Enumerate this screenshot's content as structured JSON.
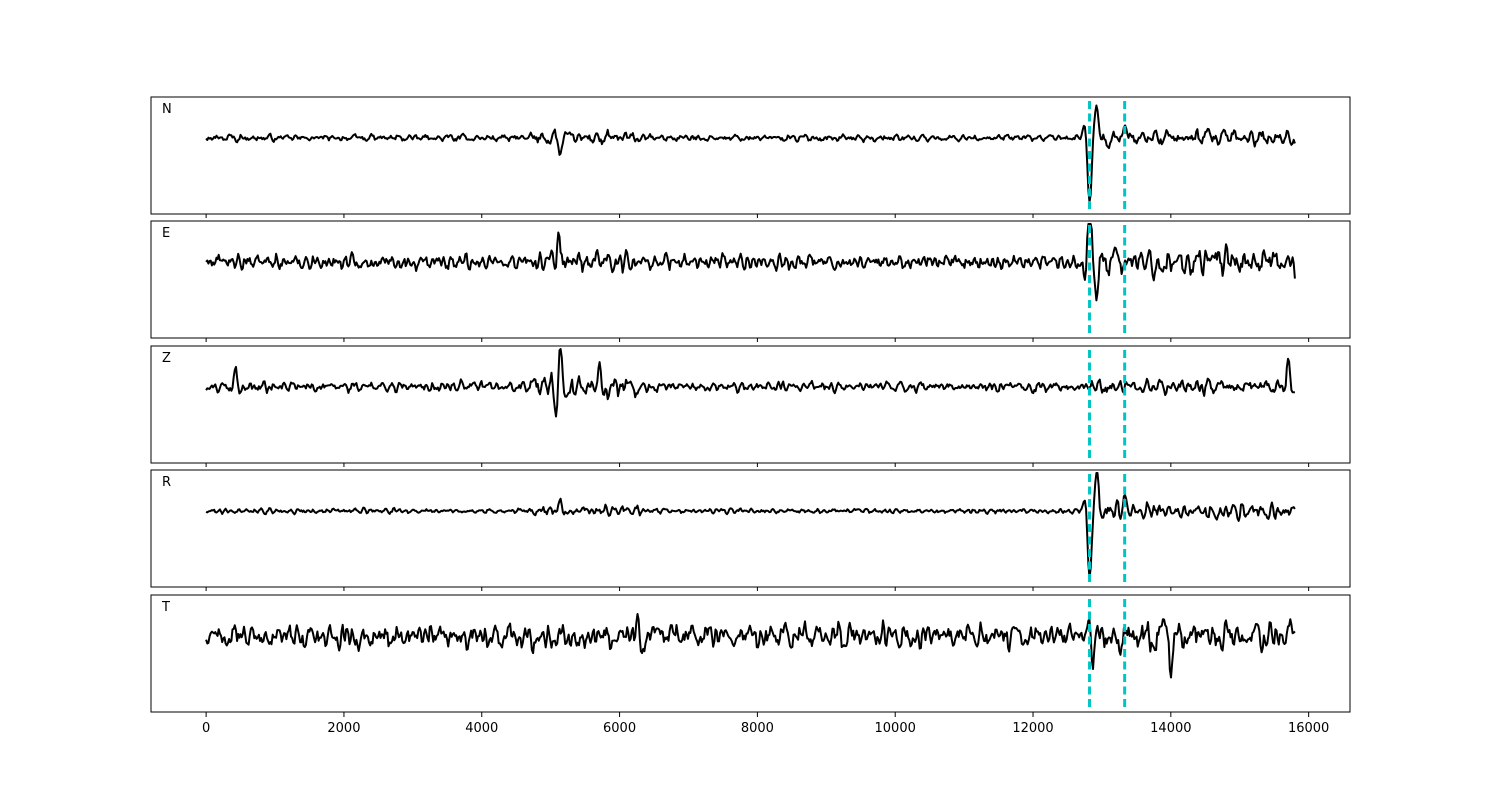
{
  "chart_data": {
    "type": "line",
    "subplot_layout": "5 stacked panels, shared x-axis",
    "xlim": [
      -800,
      16600
    ],
    "x_ticks": [
      0,
      2000,
      4000,
      6000,
      8000,
      10000,
      12000,
      14000,
      16000
    ],
    "x_tick_labels": [
      "0",
      "2000",
      "4000",
      "6000",
      "8000",
      "10000",
      "12000",
      "14000",
      "16000"
    ],
    "sample_range": [
      0,
      15800
    ],
    "y_axis_visible": false,
    "grid": false,
    "line_color": "#000000",
    "marker_color": "#00c5c5",
    "vertical_markers": [
      12820,
      13330
    ],
    "panels": [
      {
        "label": "N",
        "noise_amp": 0.1,
        "pre_event_amp": 0.18,
        "coda_amp": 0.22,
        "features": [
          {
            "x": 5130,
            "amp": -0.25
          },
          {
            "x": 12820,
            "amp": -1.0
          },
          {
            "x": 12930,
            "amp": 0.55
          },
          {
            "x": 13330,
            "amp": 0.25
          }
        ]
      },
      {
        "label": "E",
        "noise_amp": 0.2,
        "pre_event_amp": 0.28,
        "coda_amp": 0.38,
        "features": [
          {
            "x": 5130,
            "amp": 0.3
          },
          {
            "x": 12820,
            "amp": 1.0
          },
          {
            "x": 12930,
            "amp": -0.45
          },
          {
            "x": 13200,
            "amp": 0.4
          },
          {
            "x": 15810,
            "amp": -0.4
          }
        ]
      },
      {
        "label": "Z",
        "noise_amp": 0.15,
        "pre_event_amp": 0.32,
        "coda_amp": 0.22,
        "features": [
          {
            "x": 420,
            "amp": 0.28
          },
          {
            "x": 5130,
            "amp": 1.0
          },
          {
            "x": 5100,
            "amp": -0.55
          },
          {
            "x": 5700,
            "amp": 0.35
          },
          {
            "x": 15700,
            "amp": 0.35
          }
        ]
      },
      {
        "label": "R",
        "noise_amp": 0.07,
        "pre_event_amp": 0.15,
        "coda_amp": 0.2,
        "features": [
          {
            "x": 5130,
            "amp": 0.2
          },
          {
            "x": 12820,
            "amp": -1.0
          },
          {
            "x": 12930,
            "amp": 0.55
          },
          {
            "x": 13330,
            "amp": 0.25
          }
        ]
      },
      {
        "label": "T",
        "noise_amp": 0.32,
        "pre_event_amp": 0.35,
        "coda_amp": 0.42,
        "features": [
          {
            "x": 12830,
            "amp": 0.75
          },
          {
            "x": 12850,
            "amp": -0.9
          },
          {
            "x": 14000,
            "amp": -0.55
          },
          {
            "x": 6330,
            "amp": -0.35
          }
        ]
      }
    ]
  }
}
